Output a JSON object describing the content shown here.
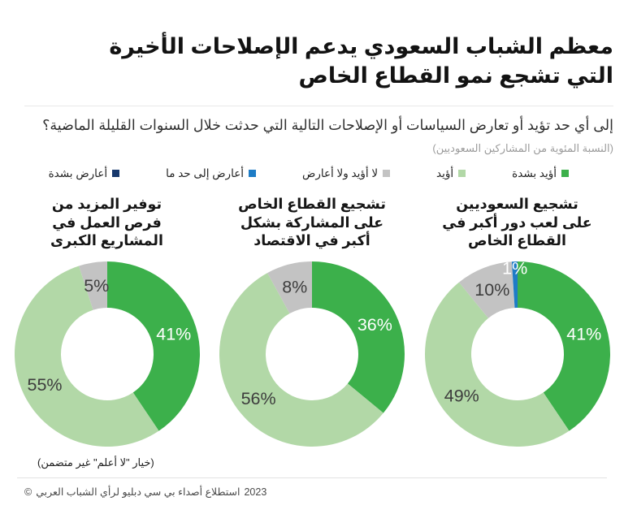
{
  "header": {
    "title_line1": "معظم الشباب السعودي يدعم الإصلاحات الأخيرة",
    "title_line2": "التي تشجع نمو القطاع الخاص",
    "question": "إلى أي حد تؤيد أو تعارض السياسات أو الإصلاحات التالية التي حدثت خلال السنوات القليلة الماضية؟",
    "caption": "(النسبة المئوية من المشاركين السعوديين)"
  },
  "legend": [
    {
      "label": "أؤيد بشدة",
      "color": "#3cb04b"
    },
    {
      "label": "أؤيد",
      "color": "#b2d8a7"
    },
    {
      "label": "لا أؤيد ولا أعارض",
      "color": "#c3c3c3"
    },
    {
      "label": "أعارض إلى حد ما",
      "color": "#1e7cc6"
    },
    {
      "label": "أعارض بشدة",
      "color": "#17386d"
    }
  ],
  "chart_data": {
    "type": "pie",
    "subtype": "donut",
    "unit": "%",
    "legend_position": "top",
    "title": "معظم الشباب السعودي يدعم الإصلاحات الأخيرة التي تشجع نمو القطاع الخاص",
    "categories": [
      "أؤيد بشدة",
      "أؤيد",
      "لا أؤيد ولا أعارض",
      "أعارض إلى حد ما",
      "أعارض بشدة"
    ],
    "charts": [
      {
        "title": "تشجيع السعوديين على لعب دور أكبر في القطاع الخاص",
        "title_lines": [
          "تشجيع السعوديين",
          "على لعب دور أكبر في",
          "القطاع الخاص"
        ],
        "segments": [
          {
            "label": "أؤيد بشدة",
            "value": 41,
            "color": "#3cb04b",
            "label_color": "#ffffff"
          },
          {
            "label": "أؤيد",
            "value": 49,
            "color": "#b2d8a7",
            "label_color": "#3d3d3d"
          },
          {
            "label": "لا أؤيد ولا أعارض",
            "value": 10,
            "color": "#c3c3c3",
            "label_color": "#3d3d3d"
          },
          {
            "label": "أعارض إلى حد ما",
            "value": 1,
            "color": "#1e7cc6",
            "label_color": "#ffffff"
          },
          {
            "label": "أعارض بشدة",
            "value": 0,
            "color": "#17386d",
            "label_color": "#ffffff"
          }
        ]
      },
      {
        "title": "تشجيع القطاع الخاص على المشاركة بشكل أكبر في الاقتصاد",
        "title_lines": [
          "تشجيع القطاع الخاص",
          "على المشاركة بشكل",
          "أكبر في الاقتصاد"
        ],
        "segments": [
          {
            "label": "أؤيد بشدة",
            "value": 36,
            "color": "#3cb04b",
            "label_color": "#ffffff"
          },
          {
            "label": "أؤيد",
            "value": 56,
            "color": "#b2d8a7",
            "label_color": "#3d3d3d"
          },
          {
            "label": "لا أؤيد ولا أعارض",
            "value": 8,
            "color": "#c3c3c3",
            "label_color": "#3d3d3d"
          },
          {
            "label": "أعارض إلى حد ما",
            "value": 0,
            "color": "#1e7cc6",
            "label_color": "#ffffff"
          },
          {
            "label": "أعارض بشدة",
            "value": 0,
            "color": "#17386d",
            "label_color": "#ffffff"
          }
        ]
      },
      {
        "title": "توفير المزيد من فرص العمل في المشاريع الكبرى",
        "title_lines": [
          "توفير المزيد من",
          "فرص العمل في",
          "المشاريع الكبرى"
        ],
        "segments": [
          {
            "label": "أؤيد بشدة",
            "value": 41,
            "color": "#3cb04b",
            "label_color": "#ffffff"
          },
          {
            "label": "أؤيد",
            "value": 55,
            "color": "#b2d8a7",
            "label_color": "#3d3d3d"
          },
          {
            "label": "لا أؤيد ولا أعارض",
            "value": 5,
            "color": "#c3c3c3",
            "label_color": "#3d3d3d"
          },
          {
            "label": "أعارض إلى حد ما",
            "value": 0,
            "color": "#1e7cc6",
            "label_color": "#ffffff"
          },
          {
            "label": "أعارض بشدة",
            "value": 0,
            "color": "#17386d",
            "label_color": "#ffffff"
          }
        ]
      }
    ]
  },
  "footer": {
    "note": "(خيار \"لا أعلم\" غير متضمن)",
    "copyright_symbol": "©",
    "copyright_text": "استطلاع أصداء بي سي دبليو لرأي الشباب العربي",
    "copyright_year": "2023"
  }
}
